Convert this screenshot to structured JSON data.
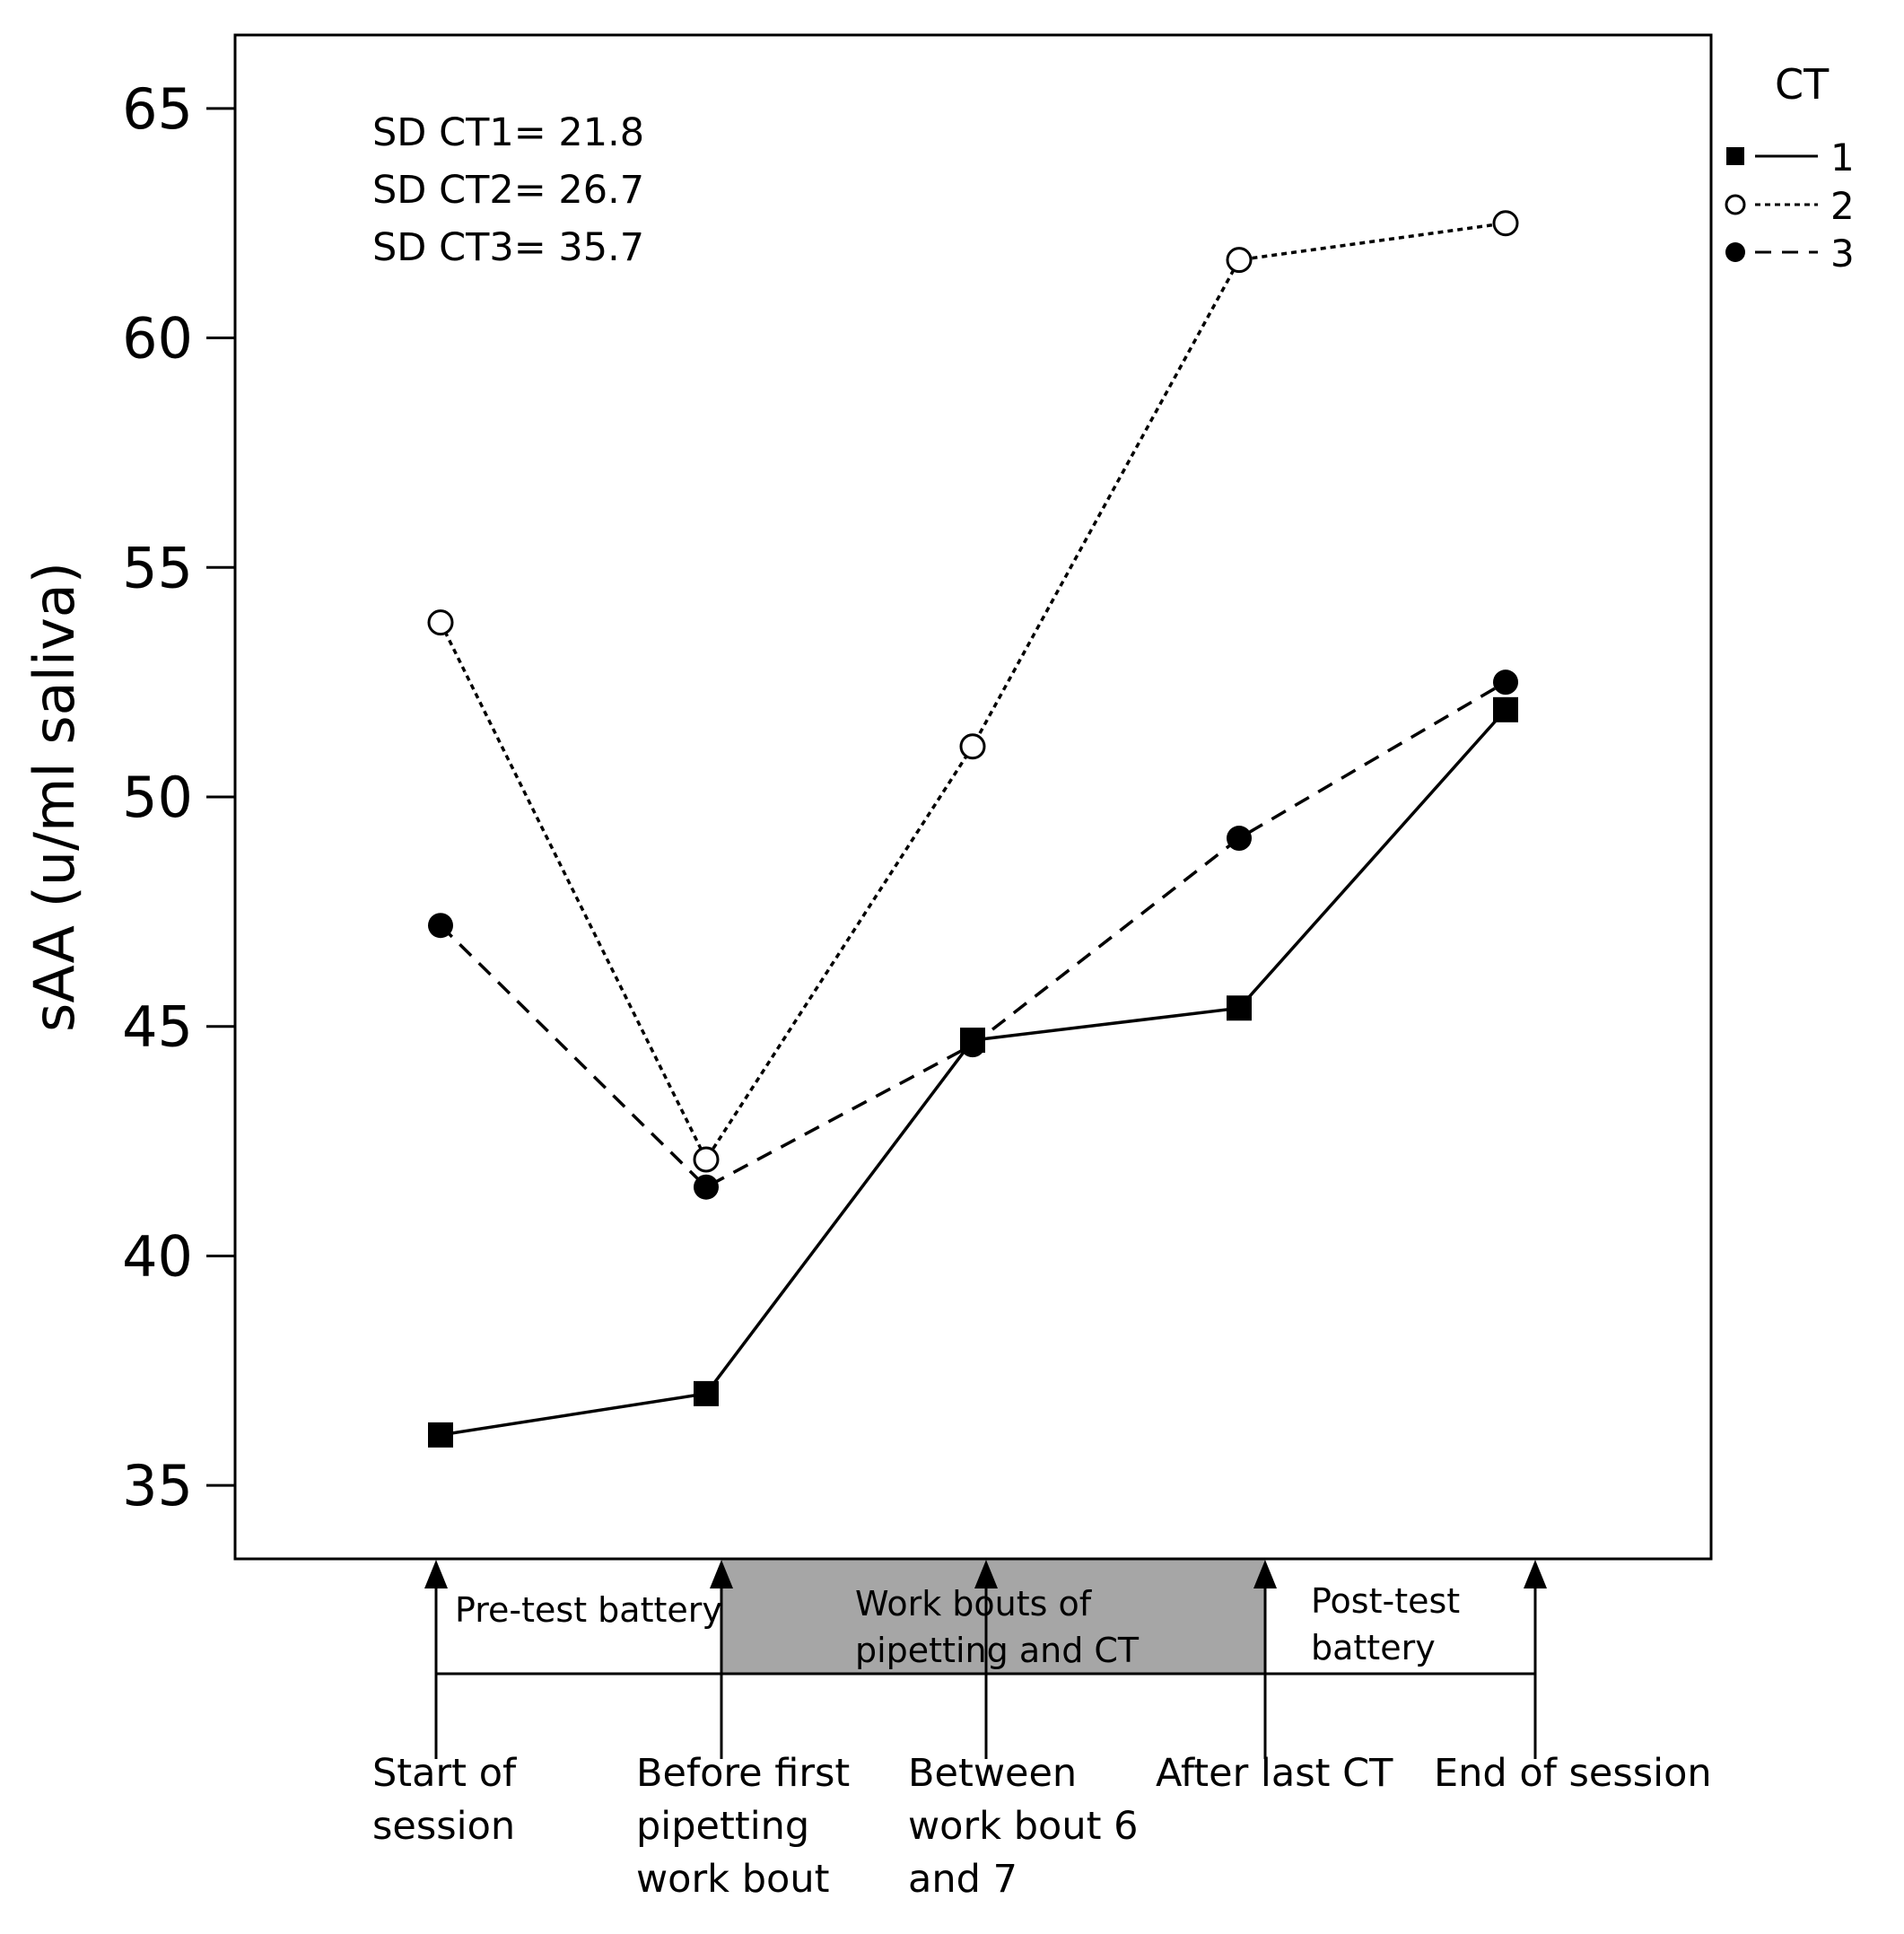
{
  "chart_data": {
    "type": "line",
    "title": "",
    "xlabel": "",
    "ylabel": "sAA (u/ml saliva)",
    "ylim": [
      33.4,
      66.6
    ],
    "yticks": [
      35,
      40,
      45,
      50,
      55,
      60,
      65
    ],
    "ytick_labels": [
      "35",
      "40",
      "45",
      "50",
      "55",
      "60",
      "65"
    ],
    "grid": false,
    "categories": [
      "Start of session",
      "Before first pipetting work bout",
      "Between work bout 6 and 7",
      "After last CT",
      "End of session"
    ],
    "category_label_lines": [
      [
        "Start of",
        "session"
      ],
      [
        "Before first",
        "pipetting",
        "work bout"
      ],
      [
        "Between",
        "work bout 6",
        "and 7"
      ],
      [
        "After last CT"
      ],
      [
        "End of session"
      ]
    ],
    "series": [
      {
        "name": "1",
        "marker": "filled-square",
        "line": "solid",
        "values": [
          36.1,
          37.0,
          44.7,
          45.4,
          51.9
        ]
      },
      {
        "name": "2",
        "marker": "open-circle",
        "line": "dotted",
        "values": [
          53.8,
          42.1,
          51.1,
          61.7,
          62.5
        ]
      },
      {
        "name": "3",
        "marker": "filled-circle",
        "line": "dashed",
        "values": [
          47.2,
          41.5,
          44.6,
          49.1,
          52.5
        ]
      }
    ],
    "legend": {
      "title": "CT",
      "placement": "right-outside-top"
    },
    "annotations": [
      "SD CT1= 21.8",
      "SD CT2= 26.7",
      "SD CT3= 35.7"
    ],
    "phases": [
      {
        "label_lines": [
          "Pre-test battery"
        ],
        "from_index": 0,
        "to_index": 1,
        "shaded": false
      },
      {
        "label_lines": [
          "Work bouts of",
          "pipetting and CT"
        ],
        "from_index": 1,
        "to_index": 3,
        "shaded": true
      },
      {
        "label_lines": [
          "Post-test",
          "battery"
        ],
        "from_index": 3,
        "to_index": 4,
        "shaded": false
      }
    ],
    "colors": {
      "line": "#000000",
      "phase_shade": "#a6a6a6",
      "background": "#ffffff"
    }
  }
}
